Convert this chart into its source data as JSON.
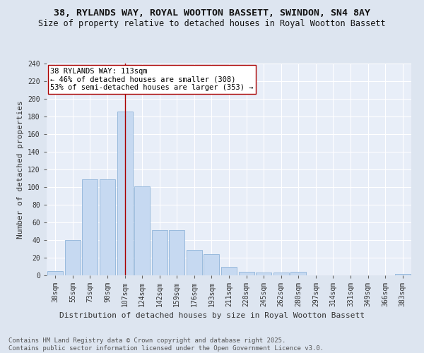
{
  "title1": "38, RYLANDS WAY, ROYAL WOOTTON BASSETT, SWINDON, SN4 8AY",
  "title2": "Size of property relative to detached houses in Royal Wootton Bassett",
  "xlabel": "Distribution of detached houses by size in Royal Wootton Bassett",
  "ylabel": "Number of detached properties",
  "categories": [
    "38sqm",
    "55sqm",
    "73sqm",
    "90sqm",
    "107sqm",
    "124sqm",
    "142sqm",
    "159sqm",
    "176sqm",
    "193sqm",
    "211sqm",
    "228sqm",
    "245sqm",
    "262sqm",
    "280sqm",
    "297sqm",
    "314sqm",
    "331sqm",
    "349sqm",
    "366sqm",
    "383sqm"
  ],
  "values": [
    5,
    40,
    109,
    109,
    186,
    101,
    51,
    51,
    29,
    24,
    10,
    4,
    3,
    3,
    4,
    0,
    0,
    0,
    0,
    0,
    2
  ],
  "bar_color": "#c6d9f1",
  "bar_edge_color": "#8fb4d9",
  "vline_x_idx": 4,
  "vline_color": "#aa0000",
  "annotation_text": "38 RYLANDS WAY: 113sqm\n← 46% of detached houses are smaller (308)\n53% of semi-detached houses are larger (353) →",
  "annotation_box_color": "white",
  "annotation_box_edge": "#aa0000",
  "ylim": [
    0,
    240
  ],
  "yticks": [
    0,
    20,
    40,
    60,
    80,
    100,
    120,
    140,
    160,
    180,
    200,
    220,
    240
  ],
  "background_color": "#dde5f0",
  "plot_bg_color": "#e8eef8",
  "grid_color": "white",
  "footer": "Contains HM Land Registry data © Crown copyright and database right 2025.\nContains public sector information licensed under the Open Government Licence v3.0.",
  "title1_fontsize": 9.5,
  "title2_fontsize": 8.5,
  "xlabel_fontsize": 8,
  "ylabel_fontsize": 8,
  "tick_fontsize": 7,
  "annotation_fontsize": 7.5,
  "footer_fontsize": 6.5
}
